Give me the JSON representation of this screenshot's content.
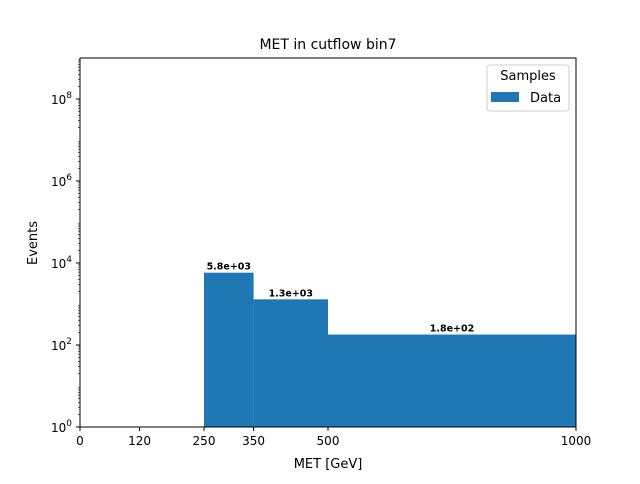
{
  "chart_data": {
    "type": "bar",
    "title": "MET in cutflow bin7",
    "xlabel": "MET [GeV]",
    "ylabel": "Events",
    "xlim": [
      0,
      1000
    ],
    "ylim": [
      1,
      1000000000
    ],
    "yscale": "log",
    "grid": false,
    "legend_position": "top-right",
    "legend_title": "Samples",
    "x_ticks": [
      "0",
      "120",
      "250",
      "350",
      "500",
      "1000"
    ],
    "y_ticks": [
      {
        "base": "10",
        "exp": "0"
      },
      {
        "base": "10",
        "exp": "2"
      },
      {
        "base": "10",
        "exp": "4"
      },
      {
        "base": "10",
        "exp": "6"
      },
      {
        "base": "10",
        "exp": "8"
      }
    ],
    "bin_edges": [
      0,
      120,
      250,
      350,
      500,
      1000
    ],
    "series": [
      {
        "name": "Data",
        "color": "#1f77b4",
        "values": [
          0,
          0,
          5800,
          1300,
          180
        ],
        "labels": [
          "",
          "",
          "5.8e+03",
          "1.3e+03",
          "1.8e+02"
        ]
      }
    ]
  }
}
